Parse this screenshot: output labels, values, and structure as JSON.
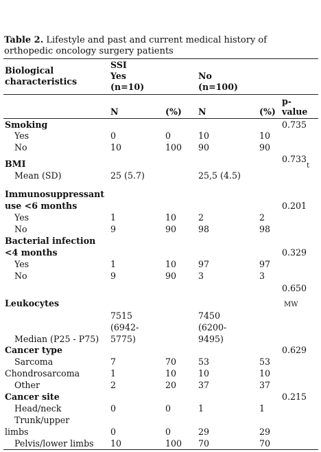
{
  "caption": {
    "label": "Table 2.",
    "text": " Lifestyle and past and current medical history of orthopedic oncology surgery patients"
  },
  "header": {
    "col0_line1": "Biological",
    "col0_line2": "characteristics",
    "ssi": "SSI",
    "yes": "Yes",
    "yes_n": "(n=10)",
    "no": "No",
    "no_n": "(n=100)",
    "n1": "N",
    "pct1": "(%)",
    "n2": "N",
    "pct2": "(%)",
    "p_line1": "p-",
    "p_line2": "value"
  },
  "rows": {
    "smoking": {
      "label": "Smoking",
      "p": "0.735"
    },
    "smoking_yes": {
      "label": "Yes",
      "n1": "0",
      "pct1": "0",
      "n2": "10",
      "pct2": "10"
    },
    "smoking_no": {
      "label": "No",
      "n1": "10",
      "pct1": "100",
      "n2": "90",
      "pct2": "90"
    },
    "bmi": {
      "label": "BMI",
      "p": "0.733",
      "p_sub": "t"
    },
    "bmi_mean": {
      "label": "Mean (SD)",
      "n1": "25 (5.7)",
      "n2": "25,5 (4.5)"
    },
    "immuno": {
      "label_line1": "Immunosuppressant",
      "label_line2": "use <6 months",
      "p": "0.201"
    },
    "immuno_yes": {
      "label": "Yes",
      "n1": "1",
      "pct1": "10",
      "n2": "2",
      "pct2": "2"
    },
    "immuno_no": {
      "label": "No",
      "n1": "9",
      "pct1": "90",
      "n2": "98",
      "pct2": "98"
    },
    "bact": {
      "label_line1": "Bacterial infection",
      "label_line2": "<4 months",
      "p": "0.329"
    },
    "bact_yes": {
      "label": "Yes",
      "n1": "1",
      "pct1": "10",
      "n2": "97",
      "pct2": "97"
    },
    "bact_no": {
      "label": "No",
      "n1": "9",
      "pct1": "90",
      "n2": "3",
      "pct2": "3"
    },
    "leuko": {
      "label": "Leukocytes",
      "p": "0.650",
      "p_note": "MW"
    },
    "leuko_median": {
      "label": "Median (P25 - P75)",
      "n1_line1": "7515",
      "n1_line2": "(6942-",
      "n1_line3": "5775)",
      "n2_line1": "7450",
      "n2_line2": "(6200-",
      "n2_line3": "9495)"
    },
    "cancer_type": {
      "label": "Cancer type",
      "p": "0.629"
    },
    "sarcoma": {
      "label": "Sarcoma",
      "n1": "7",
      "pct1": "70",
      "n2": "53",
      "pct2": "53"
    },
    "chondro": {
      "label": "Chondrosarcoma",
      "n1": "1",
      "pct1": "10",
      "n2": "10",
      "pct2": "10"
    },
    "other": {
      "label": "Other",
      "n1": "2",
      "pct1": "20",
      "n2": "37",
      "pct2": "37"
    },
    "cancer_site": {
      "label": "Cancer site",
      "p": "0.215"
    },
    "head_neck": {
      "label": "Head/neck",
      "n1": "0",
      "pct1": "0",
      "n2": "1",
      "pct2": "1"
    },
    "trunk": {
      "label_line1": "Trunk/upper",
      "label_line2": "limbs",
      "n1": "0",
      "pct1": "0",
      "n2": "29",
      "pct2": "29"
    },
    "pelvis": {
      "label": "Pelvis/lower limbs",
      "n1": "10",
      "pct1": "100",
      "n2": "70",
      "pct2": "70"
    }
  }
}
